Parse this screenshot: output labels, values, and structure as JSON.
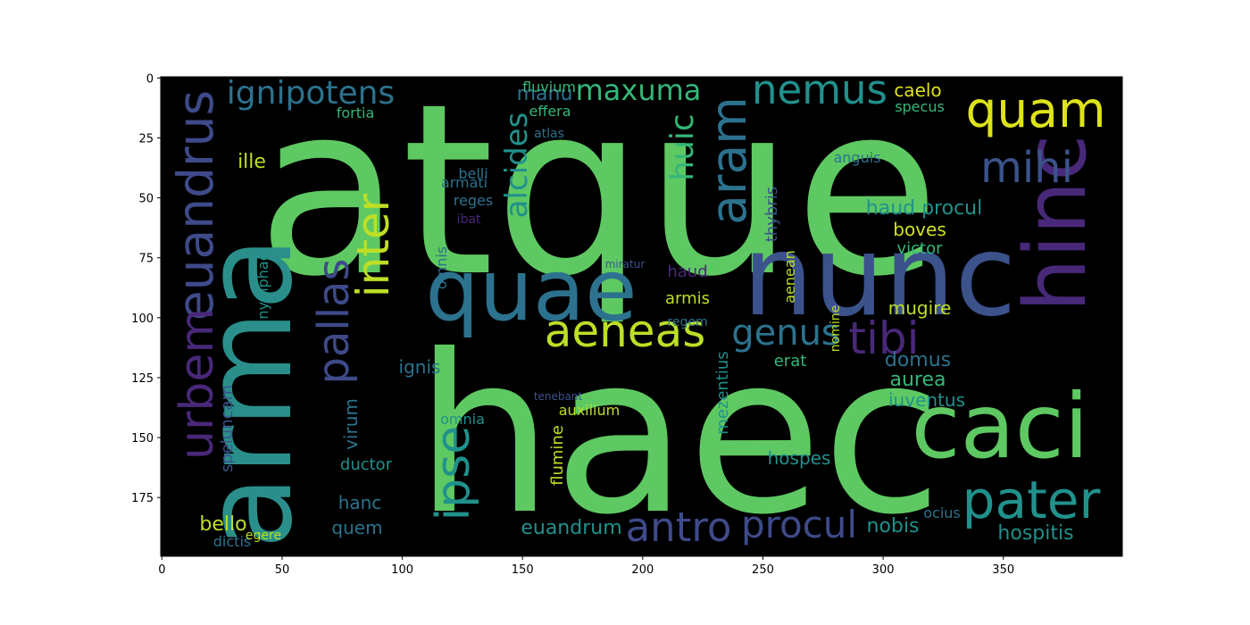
{
  "chart_data": {
    "type": "image",
    "xlim": [
      -0.5,
      399.5
    ],
    "ylim": [
      199.5,
      -0.5
    ],
    "xticks": [
      0,
      50,
      100,
      150,
      200,
      250,
      300,
      350
    ],
    "yticks": [
      0,
      25,
      50,
      75,
      100,
      125,
      150,
      175
    ],
    "words": [
      "atque",
      "haec",
      "arma",
      "nunc",
      "hinc",
      "quae",
      "caci",
      "pater",
      "quam",
      "mihi",
      "nemus",
      "aeneas",
      "genus",
      "tibi",
      "aram",
      "huic",
      "ignipotens",
      "euandrus",
      "urbem",
      "pallas",
      "inter",
      "ipse",
      "antro",
      "procul",
      "alcides",
      "maxuma",
      "manu",
      "fluvium",
      "caelo",
      "haud procul",
      "boves",
      "victor",
      "mugire",
      "erat",
      "domus",
      "aurea",
      "iuventus",
      "hospes",
      "nobis",
      "hospitis",
      "euandrum",
      "quem",
      "bello",
      "dictis",
      "hanc",
      "ignis",
      "virum",
      "fortia",
      "ille",
      "belli",
      "reges",
      "omnis",
      "thybris",
      "aenean",
      "mezentius",
      "flumine",
      "omnia",
      "auxilium",
      "ductor",
      "speluncam",
      "nymphae",
      "armis",
      "haud",
      "regem",
      "ibat",
      "armati",
      "efferа",
      "atlas",
      "anguis",
      "specus",
      "ocius",
      "egere",
      "tenebant",
      "nomine",
      "miratur"
    ]
  }
}
